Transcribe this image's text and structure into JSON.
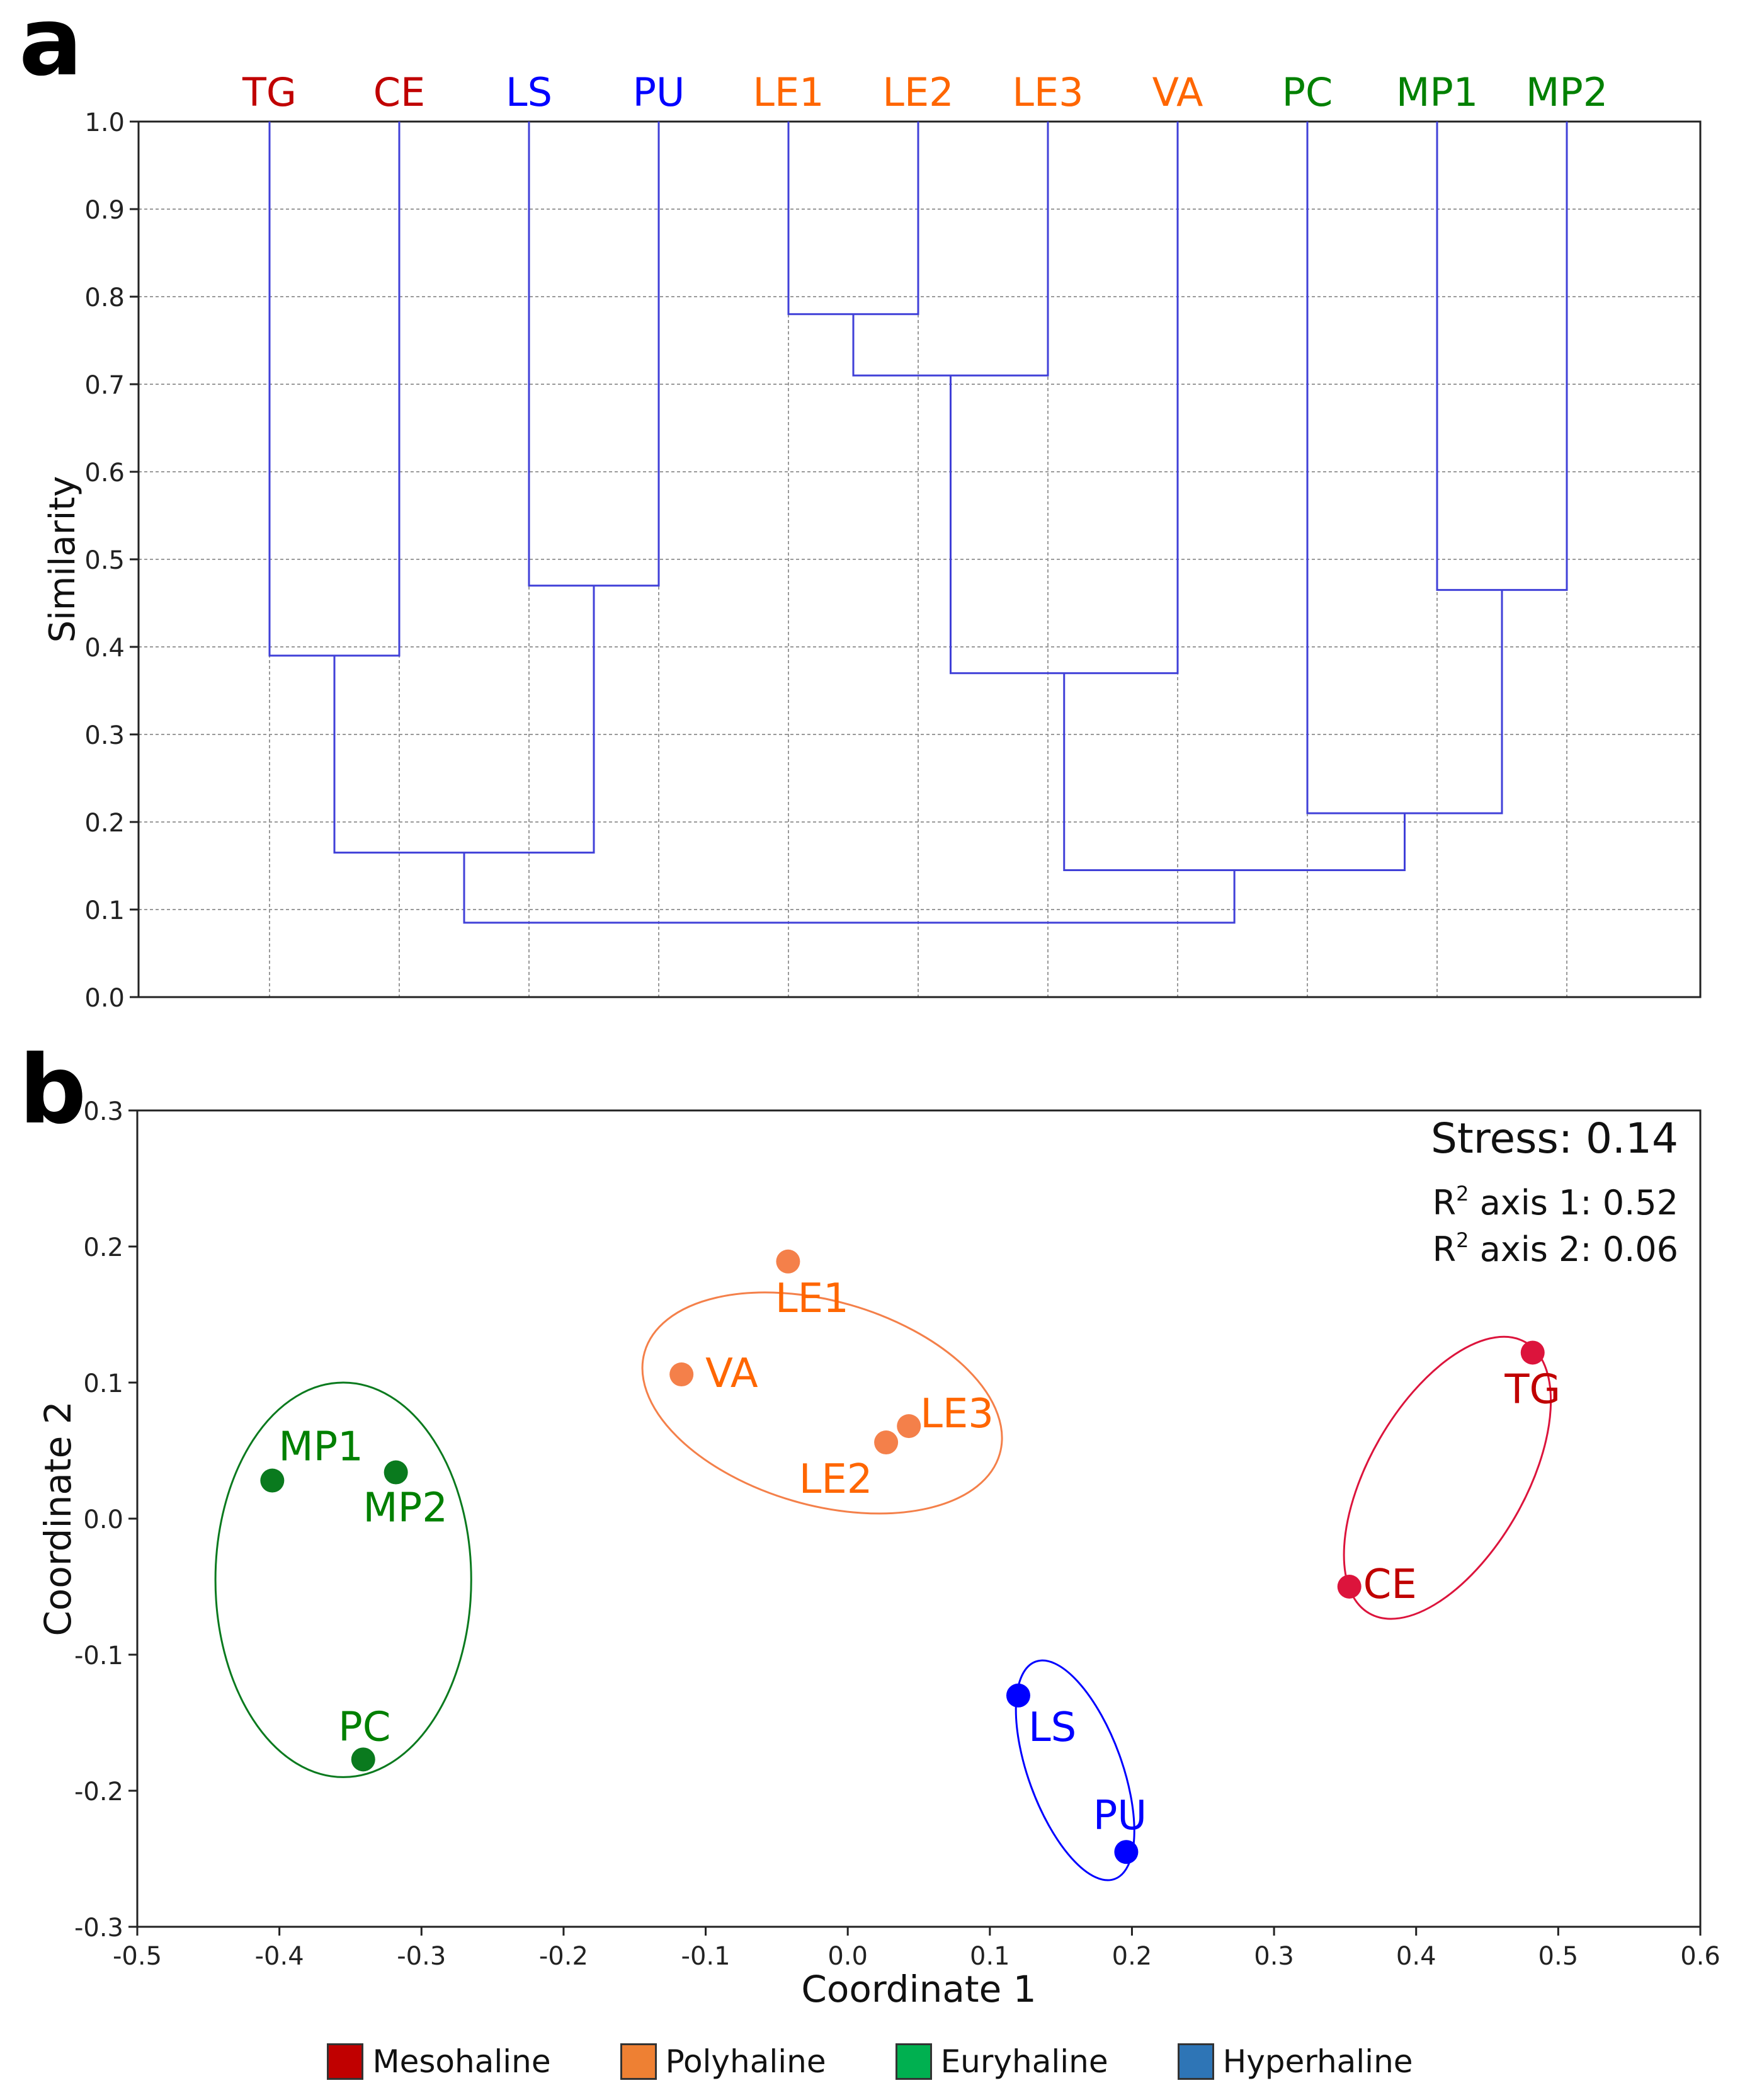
{
  "colors": {
    "mesohaline": "#c00000",
    "mesohaline_point": "#dc143c",
    "polyhaline": "#ff6600",
    "polyhaline_point": "#f4804a",
    "euryhaline": "#008000",
    "euryhaline_point": "#0a7a1e",
    "hyperhaline": "#0000ff",
    "dendro_line": "#4040d8",
    "legend_meso": "#c00000",
    "legend_poly": "#ee8033",
    "legend_eury": "#00b050",
    "legend_hyper": "#2e75b6"
  },
  "panel_a_label": "a",
  "panel_b_label": "b",
  "chart_data": [
    {
      "type": "dendrogram",
      "panel": "a",
      "ylabel": "Similarity",
      "ylim": [
        0.0,
        1.0
      ],
      "yticks": [
        "0.0",
        "0.1",
        "0.2",
        "0.3",
        "0.4",
        "0.5",
        "0.6",
        "0.7",
        "0.8",
        "0.9",
        "1.0"
      ],
      "grid": true,
      "leaves": [
        {
          "name": "TG",
          "group": "mesohaline"
        },
        {
          "name": "CE",
          "group": "mesohaline"
        },
        {
          "name": "LS",
          "group": "hyperhaline"
        },
        {
          "name": "PU",
          "group": "hyperhaline"
        },
        {
          "name": "LE1",
          "group": "polyhaline"
        },
        {
          "name": "LE2",
          "group": "polyhaline"
        },
        {
          "name": "LE3",
          "group": "polyhaline"
        },
        {
          "name": "VA",
          "group": "polyhaline"
        },
        {
          "name": "PC",
          "group": "euryhaline"
        },
        {
          "name": "MP1",
          "group": "euryhaline"
        },
        {
          "name": "MP2",
          "group": "euryhaline"
        }
      ],
      "merges": [
        {
          "id": "n1",
          "left": "LE1",
          "right": "LE2",
          "similarity": 0.78
        },
        {
          "id": "n2",
          "left": "n1",
          "right": "LE3",
          "similarity": 0.71
        },
        {
          "id": "n3",
          "left": "LS",
          "right": "PU",
          "similarity": 0.47
        },
        {
          "id": "n4",
          "left": "MP1",
          "right": "MP2",
          "similarity": 0.465
        },
        {
          "id": "n5",
          "left": "TG",
          "right": "CE",
          "similarity": 0.39
        },
        {
          "id": "n6",
          "left": "n2",
          "right": "VA",
          "similarity": 0.37
        },
        {
          "id": "n7",
          "left": "PC",
          "right": "n4",
          "similarity": 0.21
        },
        {
          "id": "n8",
          "left": "n5",
          "right": "n3",
          "similarity": 0.165
        },
        {
          "id": "n9",
          "left": "n6",
          "right": "n7",
          "similarity": 0.145
        },
        {
          "id": "n10",
          "left": "n8",
          "right": "n9",
          "similarity": 0.085
        }
      ]
    },
    {
      "type": "scatter",
      "panel": "b",
      "xlabel": "Coordinate 1",
      "ylabel": "Coordinate 2",
      "xlim": [
        -0.5,
        0.6
      ],
      "ylim": [
        -0.3,
        0.3
      ],
      "xticks": [
        "-0.5",
        "-0.4",
        "-0.3",
        "-0.2",
        "-0.1",
        "0.0",
        "0.1",
        "0.2",
        "0.3",
        "0.4",
        "0.5",
        "0.6"
      ],
      "yticks": [
        "-0.3",
        "-0.2",
        "-0.1",
        "0.0",
        "0.1",
        "0.2",
        "0.3"
      ],
      "stress_label": "Stress: 0.14",
      "r2_axis1_prefix": "R",
      "r2_axis1_sup": "2",
      "r2_axis1_text": " axis 1: 0.52",
      "r2_axis2_prefix": "R",
      "r2_axis2_sup": "2",
      "r2_axis2_text": " axis 2: 0.06",
      "points": [
        {
          "name": "TG",
          "x": 0.482,
          "y": 0.122,
          "group": "mesohaline"
        },
        {
          "name": "CE",
          "x": 0.353,
          "y": -0.05,
          "group": "mesohaline"
        },
        {
          "name": "LE1",
          "x": -0.042,
          "y": 0.189,
          "group": "polyhaline"
        },
        {
          "name": "VA",
          "x": -0.117,
          "y": 0.106,
          "group": "polyhaline"
        },
        {
          "name": "LE3",
          "x": 0.043,
          "y": 0.068,
          "group": "polyhaline"
        },
        {
          "name": "LE2",
          "x": 0.027,
          "y": 0.056,
          "group": "polyhaline"
        },
        {
          "name": "MP1",
          "x": -0.405,
          "y": 0.028,
          "group": "euryhaline"
        },
        {
          "name": "MP2",
          "x": -0.318,
          "y": 0.034,
          "group": "euryhaline"
        },
        {
          "name": "PC",
          "x": -0.341,
          "y": -0.177,
          "group": "euryhaline"
        },
        {
          "name": "LS",
          "x": 0.12,
          "y": -0.13,
          "group": "hyperhaline"
        },
        {
          "name": "PU",
          "x": 0.196,
          "y": -0.245,
          "group": "hyperhaline"
        }
      ],
      "ellipses": [
        {
          "group": "euryhaline",
          "cx": -0.355,
          "cy": -0.045,
          "rx": 0.09,
          "ry": 0.145,
          "angle": 0
        },
        {
          "group": "polyhaline",
          "cx": -0.018,
          "cy": 0.085,
          "rx": 0.13,
          "ry": 0.075,
          "angle": 16
        },
        {
          "group": "mesohaline",
          "cx": 0.422,
          "cy": 0.03,
          "rx": 0.055,
          "ry": 0.115,
          "angle": 30
        },
        {
          "group": "hyperhaline",
          "cx": 0.16,
          "cy": -0.185,
          "rx": 0.033,
          "ry": 0.085,
          "angle": -20
        }
      ]
    }
  ],
  "legend": [
    {
      "label": "Mesohaline",
      "color_key": "legend_meso"
    },
    {
      "label": "Polyhaline",
      "color_key": "legend_poly"
    },
    {
      "label": "Euryhaline",
      "color_key": "legend_eury"
    },
    {
      "label": "Hyperhaline",
      "color_key": "legend_hyper"
    }
  ]
}
